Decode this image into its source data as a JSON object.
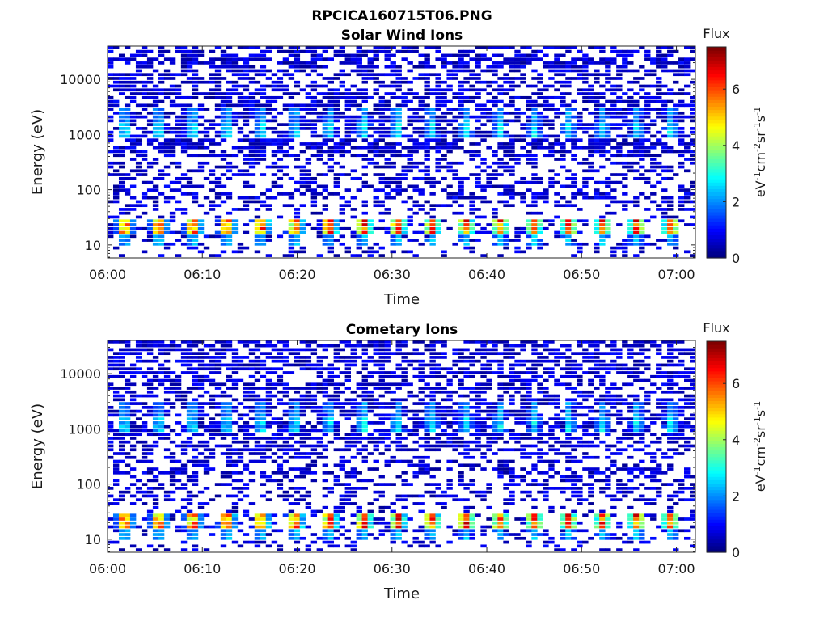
{
  "figure": {
    "title": "RPCICA160715T06.PNG"
  },
  "chart_data": [
    {
      "type": "heatmap",
      "title": "Solar Wind Ions",
      "xlabel": "Time",
      "ylabel": "Energy (eV)",
      "x_ticks": [
        "06:00",
        "06:10",
        "06:20",
        "06:30",
        "06:40",
        "06:50",
        "07:00"
      ],
      "x_range": [
        "06:00",
        "07:02"
      ],
      "y_scale": "log",
      "y_ticks": [
        "10",
        "100",
        "1000",
        "10000"
      ],
      "y_range": [
        5.8,
        40000
      ],
      "colorbar": {
        "title": "Flux",
        "label_base": "eV",
        "label_sup1": "-1",
        "label_mid1": "cm",
        "label_sup2": "-2",
        "label_mid2": "sr",
        "label_sup3": "-1",
        "label_mid3": "s",
        "label_sup4": "-1",
        "range": [
          0,
          7.5
        ],
        "ticks": [
          "0",
          "2",
          "4",
          "6"
        ],
        "colormap": "jet"
      },
      "bands": [
        {
          "energy_ev": 22,
          "peak_flux": 6.5
        },
        {
          "energy_ev": 12,
          "peak_flux": 2.5
        },
        {
          "energy_ev": 2200,
          "peak_flux": 2.2
        },
        {
          "energy_ev": 1100,
          "peak_flux": 2.8
        }
      ]
    },
    {
      "type": "heatmap",
      "title": "Cometary Ions",
      "xlabel": "Time",
      "ylabel": "Energy (eV)",
      "x_ticks": [
        "06:00",
        "06:10",
        "06:20",
        "06:30",
        "06:40",
        "06:50",
        "07:00"
      ],
      "x_range": [
        "06:00",
        "07:02"
      ],
      "y_scale": "log",
      "y_ticks": [
        "10",
        "100",
        "1000",
        "10000"
      ],
      "y_range": [
        5.8,
        40000
      ],
      "colorbar": {
        "title": "Flux",
        "label_base": "eV",
        "label_sup1": "-1",
        "label_mid1": "cm",
        "label_sup2": "-2",
        "label_mid2": "sr",
        "label_sup3": "-1",
        "label_mid3": "s",
        "label_sup4": "-1",
        "range": [
          0,
          7.5
        ],
        "ticks": [
          "0",
          "2",
          "4",
          "6"
        ],
        "colormap": "jet"
      },
      "bands": [
        {
          "energy_ev": 22,
          "peak_flux": 6.5
        },
        {
          "energy_ev": 12,
          "peak_flux": 2.5
        },
        {
          "energy_ev": 2200,
          "peak_flux": 2.2
        },
        {
          "energy_ev": 1100,
          "peak_flux": 2.8
        }
      ]
    }
  ]
}
